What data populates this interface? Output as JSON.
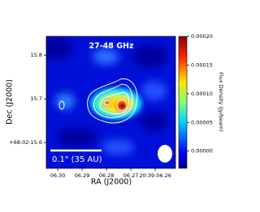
{
  "chart_data": {
    "type": "image",
    "title": "27-48 GHz",
    "xlabel": "RA (J2000)",
    "ylabel": "Dec (J2000)",
    "colorbar_label": "Flux Density (Jy/beam)",
    "scalebar_label": "0.1\" (35 AU)",
    "xlim": [
      6.3047,
      6.2517
    ],
    "xticks": [
      {
        "value": 6.3,
        "label": "06.30"
      },
      {
        "value": 6.29,
        "label": "06.29"
      },
      {
        "value": 6.28,
        "label": "06.28"
      },
      {
        "value": 6.27,
        "label": "06.27"
      },
      {
        "value": 6.26,
        "label": "20:39:06.26"
      }
    ],
    "ylim": [
      15.541,
      15.843
    ],
    "yticks": [
      {
        "value": 15.6,
        "label": "+68:02:15.6"
      },
      15.7,
      15.8
    ],
    "clim": [
      -3e-05,
      0.0002
    ],
    "cticks": [
      {
        "value": 0,
        "label": "0.00000"
      },
      {
        "value": 5e-05,
        "label": "0.00005"
      },
      {
        "value": 0.0001,
        "label": "0.00010"
      },
      {
        "value": 0.00015,
        "label": "0.00015"
      },
      {
        "value": 0.0002,
        "label": "0.00020"
      }
    ]
  }
}
